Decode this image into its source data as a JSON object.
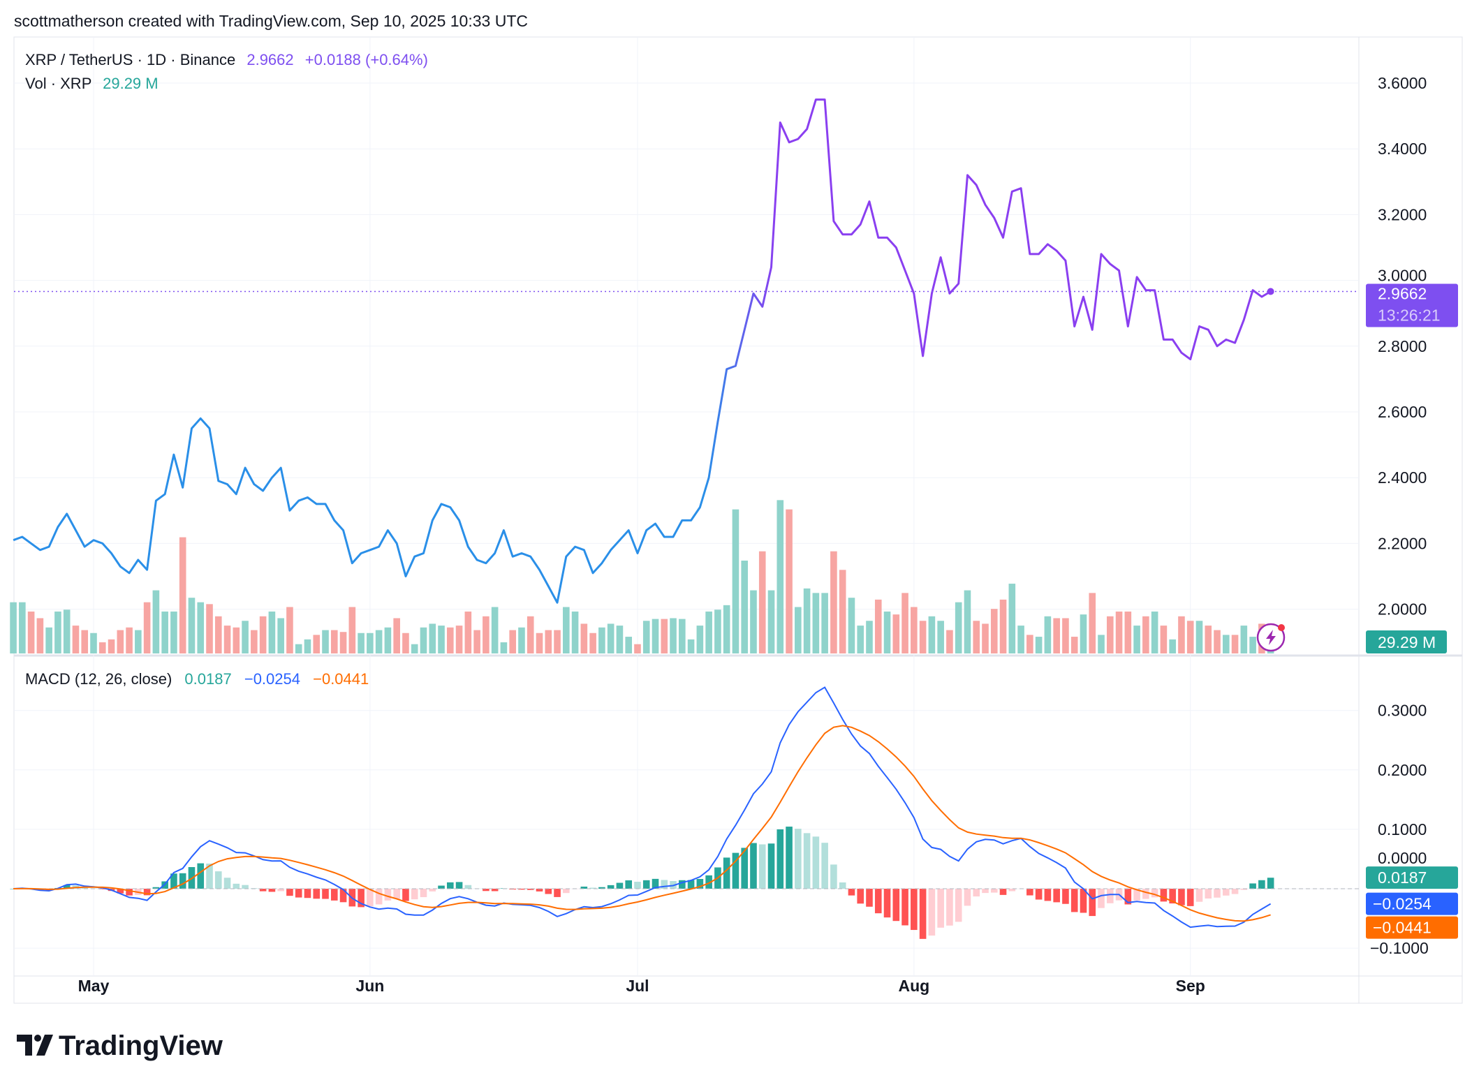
{
  "header": {
    "attribution": "scottmatherson created with TradingView.com, Sep 10, 2025 10:33 UTC"
  },
  "legend": {
    "symbol": "XRP / TetherUS · 1D · Binance",
    "price": "2.9662",
    "change": "+0.0188 (+0.64%)",
    "volume_label": "Vol · XRP",
    "volume_value": "29.29 M",
    "macd_label": "MACD (12, 26, close)",
    "macd_hist": "0.0187",
    "macd_line": "−0.0254",
    "macd_signal": "−0.0441"
  },
  "price_scale": {
    "last_price": "2.9662",
    "countdown": "13:26:21",
    "last_volume": "29.29 M",
    "macd_hist_label": "0.0187",
    "macd_line_label": "−0.0254",
    "macd_signal_label": "−0.0441"
  },
  "colors": {
    "price_line_start": "#2a8fe8",
    "price_line_end": "#8a3ff0",
    "last_price_bg": "#7e4ff0",
    "volume_up": "#8fd3cb",
    "volume_down": "#f7a5a2",
    "volume_label_bg": "#26a69a",
    "macd_line": "#2962ff",
    "signal_line": "#ff6d00",
    "hist_up_strong": "#26a69a",
    "hist_up_weak": "#b2dfdb",
    "hist_down_strong": "#ff5252",
    "hist_down_weak": "#ffcdd2",
    "grid": "#f0f3fa"
  },
  "branding": {
    "logo": "TradingView"
  },
  "chart_data": {
    "type": "line",
    "price_ticks": [
      3.6,
      3.4,
      3.2,
      3.0,
      2.8,
      2.6,
      2.4,
      2.2,
      2.0
    ],
    "price_range": [
      1.86,
      3.69
    ],
    "macd_ticks": [
      0.3,
      0.2,
      0.1,
      0,
      -0.1
    ],
    "macd_range": [
      -0.12,
      0.38
    ],
    "month_labels": [
      {
        "label": "May",
        "date": "2025-05-01"
      },
      {
        "label": "Jun",
        "date": "2025-06-01"
      },
      {
        "label": "Jul",
        "date": "2025-07-01"
      },
      {
        "label": "Aug",
        "date": "2025-08-01"
      },
      {
        "label": "Sep",
        "date": "2025-09-01"
      }
    ],
    "grid": true,
    "dates": [
      "2025-04-22",
      "2025-04-23",
      "2025-04-24",
      "2025-04-25",
      "2025-04-26",
      "2025-04-27",
      "2025-04-28",
      "2025-04-29",
      "2025-04-30",
      "2025-05-01",
      "2025-05-02",
      "2025-05-03",
      "2025-05-04",
      "2025-05-05",
      "2025-05-06",
      "2025-05-07",
      "2025-05-08",
      "2025-05-09",
      "2025-05-10",
      "2025-05-11",
      "2025-05-12",
      "2025-05-13",
      "2025-05-14",
      "2025-05-15",
      "2025-05-16",
      "2025-05-17",
      "2025-05-18",
      "2025-05-19",
      "2025-05-20",
      "2025-05-21",
      "2025-05-22",
      "2025-05-23",
      "2025-05-24",
      "2025-05-25",
      "2025-05-26",
      "2025-05-27",
      "2025-05-28",
      "2025-05-29",
      "2025-05-30",
      "2025-05-31",
      "2025-06-01",
      "2025-06-02",
      "2025-06-03",
      "2025-06-04",
      "2025-06-05",
      "2025-06-06",
      "2025-06-07",
      "2025-06-08",
      "2025-06-09",
      "2025-06-10",
      "2025-06-11",
      "2025-06-12",
      "2025-06-13",
      "2025-06-14",
      "2025-06-15",
      "2025-06-16",
      "2025-06-17",
      "2025-06-18",
      "2025-06-19",
      "2025-06-20",
      "2025-06-21",
      "2025-06-22",
      "2025-06-23",
      "2025-06-24",
      "2025-06-25",
      "2025-06-26",
      "2025-06-27",
      "2025-06-28",
      "2025-06-29",
      "2025-06-30",
      "2025-07-01",
      "2025-07-02",
      "2025-07-03",
      "2025-07-04",
      "2025-07-05",
      "2025-07-06",
      "2025-07-07",
      "2025-07-08",
      "2025-07-09",
      "2025-07-10",
      "2025-07-11",
      "2025-07-12",
      "2025-07-13",
      "2025-07-14",
      "2025-07-15",
      "2025-07-16",
      "2025-07-17",
      "2025-07-18",
      "2025-07-19",
      "2025-07-20",
      "2025-07-21",
      "2025-07-22",
      "2025-07-23",
      "2025-07-24",
      "2025-07-25",
      "2025-07-26",
      "2025-07-27",
      "2025-07-28",
      "2025-07-29",
      "2025-07-30",
      "2025-07-31",
      "2025-08-01",
      "2025-08-02",
      "2025-08-03",
      "2025-08-04",
      "2025-08-05",
      "2025-08-06",
      "2025-08-07",
      "2025-08-08",
      "2025-08-09",
      "2025-08-10",
      "2025-08-11",
      "2025-08-12",
      "2025-08-13",
      "2025-08-14",
      "2025-08-15",
      "2025-08-16",
      "2025-08-17",
      "2025-08-18",
      "2025-08-19",
      "2025-08-20",
      "2025-08-21",
      "2025-08-22",
      "2025-08-23",
      "2025-08-24",
      "2025-08-25",
      "2025-08-26",
      "2025-08-27",
      "2025-08-28",
      "2025-08-29",
      "2025-08-30",
      "2025-08-31",
      "2025-09-01",
      "2025-09-02",
      "2025-09-03",
      "2025-09-04",
      "2025-09-05",
      "2025-09-06",
      "2025-09-07",
      "2025-09-08",
      "2025-09-09",
      "2025-09-10"
    ],
    "close": [
      2.21,
      2.22,
      2.2,
      2.18,
      2.19,
      2.25,
      2.29,
      2.24,
      2.19,
      2.21,
      2.2,
      2.17,
      2.13,
      2.11,
      2.15,
      2.12,
      2.33,
      2.35,
      2.47,
      2.37,
      2.55,
      2.58,
      2.55,
      2.39,
      2.38,
      2.35,
      2.43,
      2.38,
      2.36,
      2.4,
      2.43,
      2.3,
      2.33,
      2.34,
      2.32,
      2.32,
      2.27,
      2.24,
      2.14,
      2.17,
      2.18,
      2.19,
      2.24,
      2.2,
      2.1,
      2.16,
      2.17,
      2.27,
      2.32,
      2.31,
      2.27,
      2.19,
      2.15,
      2.14,
      2.17,
      2.24,
      2.16,
      2.17,
      2.16,
      2.12,
      2.07,
      2.02,
      2.16,
      2.19,
      2.18,
      2.11,
      2.14,
      2.18,
      2.21,
      2.24,
      2.17,
      2.24,
      2.26,
      2.22,
      2.22,
      2.27,
      2.27,
      2.31,
      2.4,
      2.57,
      2.73,
      2.74,
      2.85,
      2.96,
      2.92,
      3.04,
      3.48,
      3.42,
      3.43,
      3.46,
      3.55,
      3.55,
      3.18,
      3.14,
      3.14,
      3.17,
      3.24,
      3.13,
      3.13,
      3.1,
      3.03,
      2.96,
      2.77,
      2.96,
      3.07,
      2.96,
      2.99,
      3.32,
      3.29,
      3.23,
      3.19,
      3.13,
      3.27,
      3.28,
      3.08,
      3.08,
      3.11,
      3.09,
      3.06,
      2.86,
      2.95,
      2.85,
      3.08,
      3.05,
      3.03,
      2.86,
      3.01,
      2.97,
      2.97,
      2.82,
      2.82,
      2.78,
      2.76,
      2.86,
      2.85,
      2.8,
      2.82,
      2.81,
      2.88,
      2.97,
      2.95,
      2.9662
    ],
    "volume_millions": [
      193,
      193,
      158,
      133,
      98,
      158,
      165,
      105,
      88,
      77,
      42,
      53,
      88,
      98,
      88,
      193,
      238,
      158,
      158,
      438,
      210,
      193,
      186,
      140,
      105,
      98,
      123,
      88,
      140,
      158,
      133,
      175,
      35,
      53,
      70,
      88,
      88,
      81,
      175,
      77,
      77,
      88,
      98,
      133,
      77,
      35,
      98,
      112,
      105,
      98,
      105,
      158,
      88,
      140,
      175,
      42,
      88,
      98,
      140,
      77,
      88,
      88,
      175,
      158,
      112,
      77,
      98,
      112,
      105,
      63,
      35,
      123,
      130,
      130,
      133,
      130,
      53,
      105,
      158,
      165,
      182,
      543,
      350,
      238,
      385,
      238,
      578,
      543,
      175,
      245,
      228,
      228,
      385,
      315,
      210,
      105,
      123,
      203,
      158,
      147,
      228,
      175,
      123,
      140,
      123,
      88,
      193,
      238,
      123,
      112,
      168,
      203,
      263,
      105,
      70,
      63,
      140,
      133,
      133,
      63,
      147,
      228,
      70,
      140,
      158,
      158,
      105,
      140,
      158,
      105,
      53,
      140,
      123,
      123,
      105,
      88,
      70,
      70,
      105,
      63,
      112,
      29.29
    ],
    "last_values": {
      "histogram": 0.0187,
      "macd": -0.0254,
      "signal": -0.0441
    }
  }
}
